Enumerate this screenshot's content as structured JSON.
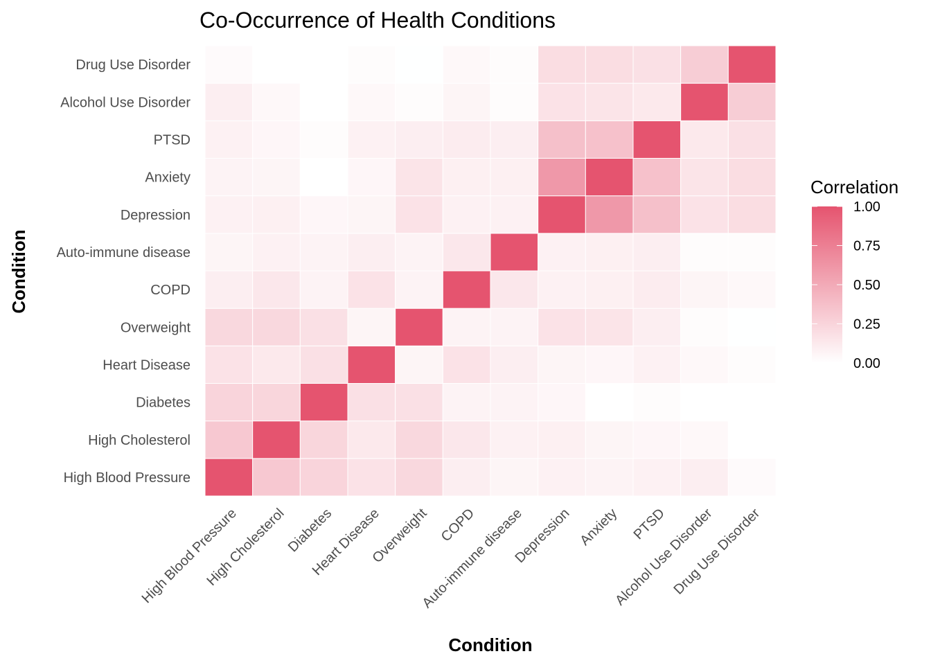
{
  "chart_data": {
    "type": "heatmap",
    "title": "Co-Occurrence of Health Conditions",
    "xlabel": "Condition",
    "ylabel": "Condition",
    "categories": [
      "High Blood Pressure",
      "High Cholesterol",
      "Diabetes",
      "Heart Disease",
      "Overweight",
      "COPD",
      "Auto-immune disease",
      "Depression",
      "Anxiety",
      "PTSD",
      "Alcohol Use Disorder",
      "Drug Use Disorder"
    ],
    "matrix": [
      [
        1.0,
        0.32,
        0.25,
        0.17,
        0.23,
        0.1,
        0.06,
        0.08,
        0.07,
        0.08,
        0.1,
        0.03
      ],
      [
        0.32,
        1.0,
        0.24,
        0.13,
        0.23,
        0.14,
        0.08,
        0.09,
        0.06,
        0.05,
        0.04,
        -0.01
      ],
      [
        0.25,
        0.24,
        1.0,
        0.18,
        0.18,
        0.07,
        0.07,
        0.05,
        0.0,
        0.02,
        0.0,
        -0.01
      ],
      [
        0.17,
        0.13,
        0.18,
        1.0,
        0.06,
        0.17,
        0.1,
        0.06,
        0.05,
        0.08,
        0.04,
        0.02
      ],
      [
        0.23,
        0.23,
        0.18,
        0.06,
        1.0,
        0.07,
        0.07,
        0.17,
        0.16,
        0.1,
        0.02,
        -0.02
      ],
      [
        0.1,
        0.14,
        0.07,
        0.17,
        0.07,
        1.0,
        0.14,
        0.08,
        0.09,
        0.11,
        0.06,
        0.04
      ],
      [
        0.06,
        0.08,
        0.07,
        0.1,
        0.07,
        0.14,
        1.0,
        0.08,
        0.09,
        0.1,
        0.02,
        0.02
      ],
      [
        0.08,
        0.09,
        0.05,
        0.06,
        0.17,
        0.08,
        0.08,
        1.0,
        0.6,
        0.37,
        0.17,
        0.2
      ],
      [
        0.07,
        0.06,
        0.0,
        0.05,
        0.16,
        0.09,
        0.09,
        0.6,
        1.0,
        0.36,
        0.16,
        0.2
      ],
      [
        0.08,
        0.05,
        0.02,
        0.08,
        0.1,
        0.11,
        0.1,
        0.37,
        0.36,
        1.0,
        0.13,
        0.18
      ],
      [
        0.1,
        0.04,
        0.0,
        0.04,
        0.02,
        0.06,
        0.02,
        0.17,
        0.16,
        0.13,
        1.0,
        0.29
      ],
      [
        0.03,
        -0.01,
        -0.01,
        0.02,
        -0.02,
        0.04,
        0.02,
        0.2,
        0.2,
        0.18,
        0.29,
        1.0
      ]
    ],
    "legend": {
      "title": "Correlation",
      "breaks": [
        1.0,
        0.75,
        0.5,
        0.25,
        0.0
      ],
      "labels": [
        "1.00",
        "0.75",
        "0.50",
        "0.25",
        "0.00"
      ],
      "placement": "right",
      "range": [
        0,
        1
      ]
    },
    "colors": {
      "low": "#f8fafe",
      "mid": "#ffffff",
      "high": "#e5546f"
    },
    "grid": false
  }
}
